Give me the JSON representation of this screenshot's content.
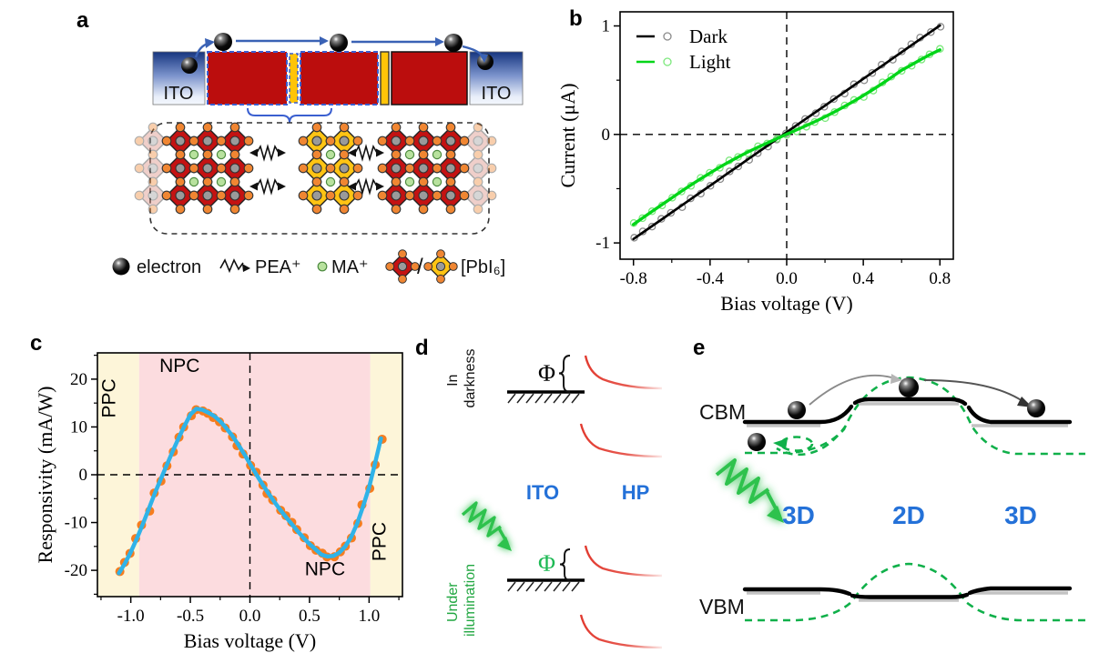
{
  "figure": {
    "panel_labels": {
      "a": "a",
      "b": "b",
      "c": "c",
      "d": "d",
      "e": "e"
    }
  },
  "panel_a": {
    "ito_left": "ITO",
    "ito_right": "ITO",
    "legend": {
      "electron": "electron",
      "pea": "PEA⁺",
      "ma": "MA⁺",
      "slash": "/",
      "pbi6": "[PbI₆]"
    }
  },
  "panel_d": {
    "state_dark_line1": "In",
    "state_dark_line2": "darkness",
    "state_light_line1": "Under",
    "state_light_line2": "illumination",
    "phi_dark": "Φ",
    "phi_light": "Φ",
    "electrode": "ITO",
    "semiconductor": "HP"
  },
  "panel_e": {
    "cbm": "CBM",
    "vbm": "VBM",
    "region_left": "3D",
    "region_mid": "2D",
    "region_right": "3D"
  },
  "colors": {
    "light_curve_green": "#00d518",
    "dark_curve": "#000000",
    "responsivity_dot_orange": "#f57d1f",
    "responsivity_line_blue": "#2fb3e8",
    "ppc_region_yellow": "#fdf5d9",
    "npc_region_pink": "#fcdcdf",
    "label_blue": "#2471d8",
    "diagram_green": "#10b04a",
    "band_red": "#e23b30",
    "perovskite_red": "#bb0d0d",
    "perovskite_2d_yellow": "#ffc408",
    "octahedron_red": "#c41212",
    "octahedron_yellow": "#ffc413",
    "iodine_orange": "#f08632",
    "lead_gray": "#9a9a9a",
    "ma_green": "#b8e29e",
    "arrow_blue": "#3a62b5"
  },
  "chart_data": [
    {
      "panel": "b",
      "type": "line",
      "xlabel": "Bias voltage (V)",
      "ylabel": "Current (μA)",
      "xlim": [
        -0.87,
        0.87
      ],
      "ylim": [
        -1.15,
        1.13
      ],
      "xticks": [
        -0.8,
        -0.4,
        0.0,
        0.4,
        0.8
      ],
      "xtick_labels": [
        "-0.8",
        "-0.4",
        "0.0",
        "0.4",
        "0.8"
      ],
      "yticks": [
        -1,
        0,
        1
      ],
      "ytick_labels": [
        "-1",
        "0",
        "1"
      ],
      "minor_xticks": [
        -0.6,
        -0.2,
        0.2,
        0.6
      ],
      "minor_yticks": [
        -0.5,
        0.5
      ],
      "zero_lines": true,
      "frame": true,
      "legend": true,
      "grid": false,
      "annotations": [],
      "regions": [],
      "series": [
        {
          "name": "Dark",
          "color": "#000000",
          "marker": "open",
          "marker_color": "#8a8a8a",
          "marker_r": 3.6,
          "width": 2.7,
          "x": [
            -0.8,
            -0.75,
            -0.7,
            -0.65,
            -0.6,
            -0.55,
            -0.5,
            -0.45,
            -0.4,
            -0.35,
            -0.3,
            -0.25,
            -0.2,
            -0.15,
            -0.1,
            -0.05,
            0.0,
            0.05,
            0.1,
            0.15,
            0.2,
            0.25,
            0.3,
            0.35,
            0.4,
            0.45,
            0.5,
            0.55,
            0.6,
            0.65,
            0.7,
            0.75,
            0.8
          ],
          "y": [
            -0.964,
            -0.903,
            -0.841,
            -0.78,
            -0.718,
            -0.657,
            -0.595,
            -0.534,
            -0.472,
            -0.411,
            -0.349,
            -0.288,
            -0.226,
            -0.165,
            -0.103,
            -0.042,
            0.02,
            0.082,
            0.143,
            0.205,
            0.266,
            0.328,
            0.389,
            0.451,
            0.512,
            0.574,
            0.635,
            0.697,
            0.758,
            0.82,
            0.881,
            0.943,
            1.004
          ]
        },
        {
          "name": "Light",
          "color": "#00d518",
          "marker": "open",
          "marker_color": "#7de87d",
          "marker_r": 3.6,
          "width": 3.4,
          "x": [
            -0.8,
            -0.75,
            -0.7,
            -0.65,
            -0.6,
            -0.55,
            -0.5,
            -0.45,
            -0.4,
            -0.35,
            -0.3,
            -0.25,
            -0.2,
            -0.15,
            -0.1,
            -0.05,
            0.0,
            0.05,
            0.1,
            0.15,
            0.2,
            0.25,
            0.3,
            0.35,
            0.4,
            0.45,
            0.5,
            0.55,
            0.6,
            0.65,
            0.7,
            0.75,
            0.8
          ],
          "y": [
            -0.83,
            -0.768,
            -0.706,
            -0.645,
            -0.585,
            -0.525,
            -0.466,
            -0.41,
            -0.355,
            -0.302,
            -0.252,
            -0.205,
            -0.16,
            -0.118,
            -0.078,
            -0.038,
            0.002,
            0.04,
            0.08,
            0.12,
            0.163,
            0.208,
            0.256,
            0.306,
            0.358,
            0.413,
            0.47,
            0.53,
            0.592,
            0.64,
            0.69,
            0.738,
            0.78
          ]
        }
      ]
    },
    {
      "panel": "c",
      "type": "scatter+line",
      "xlabel": "Bias voltage (V)",
      "ylabel": "Responsivity (mA/W)",
      "xlim": [
        -1.28,
        1.28
      ],
      "ylim": [
        -25.5,
        25.5
      ],
      "xticks": [
        -1.0,
        -0.5,
        0.0,
        0.5,
        1.0
      ],
      "xtick_labels": [
        "-1.0",
        "-0.5",
        "0.0",
        "0.5",
        "1.0"
      ],
      "yticks": [
        -20,
        -10,
        0,
        10,
        20
      ],
      "ytick_labels": [
        "-20",
        "-10",
        "0",
        "10",
        "20"
      ],
      "minor_xticks": [
        -1.25,
        -0.75,
        -0.25,
        0.25,
        0.75,
        1.25
      ],
      "minor_yticks": [
        -25,
        -15,
        -5,
        5,
        15,
        25
      ],
      "zero_lines": true,
      "frame": true,
      "legend": false,
      "grid": false,
      "regions": [
        {
          "x0": -1.28,
          "x1": -0.93,
          "color": "#fdf5d9",
          "label": "PPC"
        },
        {
          "x0": -0.93,
          "x1": 1.01,
          "color": "#fcdcdf",
          "label": "NPC"
        },
        {
          "x0": 1.01,
          "x1": 1.28,
          "color": "#fdf5d9",
          "label": "PPC"
        }
      ],
      "annotations": [
        {
          "text": "PPC",
          "x": -1.13,
          "y": 16,
          "rotate": -90
        },
        {
          "text": "NPC",
          "x": -0.59,
          "y": 21.5,
          "rotate": 0
        },
        {
          "text": "NPC",
          "x": 0.63,
          "y": -21,
          "rotate": 0
        },
        {
          "text": "PPC",
          "x": 1.14,
          "y": -14,
          "rotate": -90
        }
      ],
      "series": [
        {
          "name": "Responsivity",
          "color": "#2fb3e8",
          "marker": "dot",
          "marker_color": "#f57d1f",
          "marker_r": 5,
          "width": 4.5,
          "x": [
            -1.1,
            -1.05,
            -1.0,
            -0.95,
            -0.9,
            -0.85,
            -0.8,
            -0.75,
            -0.7,
            -0.65,
            -0.6,
            -0.55,
            -0.5,
            -0.45,
            -0.4,
            -0.35,
            -0.3,
            -0.25,
            -0.2,
            -0.15,
            -0.1,
            -0.05,
            0.0,
            0.05,
            0.1,
            0.15,
            0.2,
            0.25,
            0.3,
            0.35,
            0.4,
            0.45,
            0.5,
            0.55,
            0.6,
            0.65,
            0.7,
            0.75,
            0.8,
            0.85,
            0.9,
            0.95,
            1.0,
            1.05,
            1.1
          ],
          "y": [
            -20.6,
            -18.6,
            -16.2,
            -13.4,
            -10.4,
            -7.2,
            -4.0,
            -1.0,
            1.9,
            4.8,
            7.6,
            10.2,
            12.6,
            13.8,
            13.6,
            13.0,
            12.3,
            11.2,
            9.8,
            8.2,
            6.4,
            4.4,
            2.3,
            0.2,
            -1.8,
            -3.7,
            -5.5,
            -7.2,
            -8.8,
            -10.3,
            -11.8,
            -13.2,
            -14.5,
            -15.6,
            -16.7,
            -17.1,
            -17.0,
            -16.3,
            -15.0,
            -13.0,
            -10.2,
            -6.6,
            -2.6,
            2.4,
            7.6
          ]
        }
      ]
    }
  ]
}
